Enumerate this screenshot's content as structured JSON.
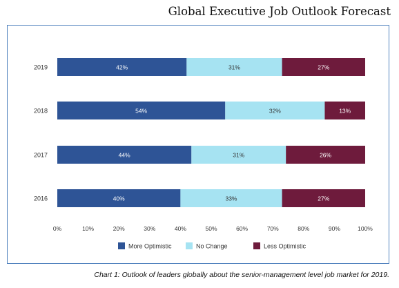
{
  "title": "Global Executive Job Outlook Forecast",
  "caption": "Chart 1: Outlook of leaders globally about the senior-management level job market for 2019.",
  "colors": {
    "more_optimistic": "#2e5496",
    "no_change": "#a6e3f2",
    "less_optimistic": "#6e1b3c",
    "frame": "#4f81bd"
  },
  "chart_data": {
    "type": "bar",
    "orientation": "horizontal",
    "stacked": true,
    "percent_stacked": true,
    "categories": [
      "2019",
      "2018",
      "2017",
      "2016"
    ],
    "series": [
      {
        "name": "More Optimistic",
        "values": [
          42,
          54,
          44,
          40
        ],
        "labels": [
          "42%",
          "54%",
          "44%",
          "40%"
        ],
        "color": "#2e5496",
        "label_color": "#ffffff"
      },
      {
        "name": "No Change",
        "values": [
          31,
          32,
          31,
          33
        ],
        "labels": [
          "31%",
          "32%",
          "31%",
          "33%"
        ],
        "color": "#a6e3f2",
        "label_color": "#333333"
      },
      {
        "name": "Less Optimistic",
        "values": [
          27,
          13,
          26,
          27
        ],
        "labels": [
          "27%",
          "13%",
          "26%",
          "27%"
        ],
        "color": "#6e1b3c",
        "label_color": "#ffffff"
      }
    ],
    "x_ticks": [
      "0%",
      "10%",
      "20%",
      "30%",
      "40%",
      "50%",
      "60%",
      "70%",
      "80%",
      "90%",
      "100%"
    ],
    "xlim": [
      0,
      100
    ],
    "grid": false,
    "legend_position": "bottom"
  }
}
